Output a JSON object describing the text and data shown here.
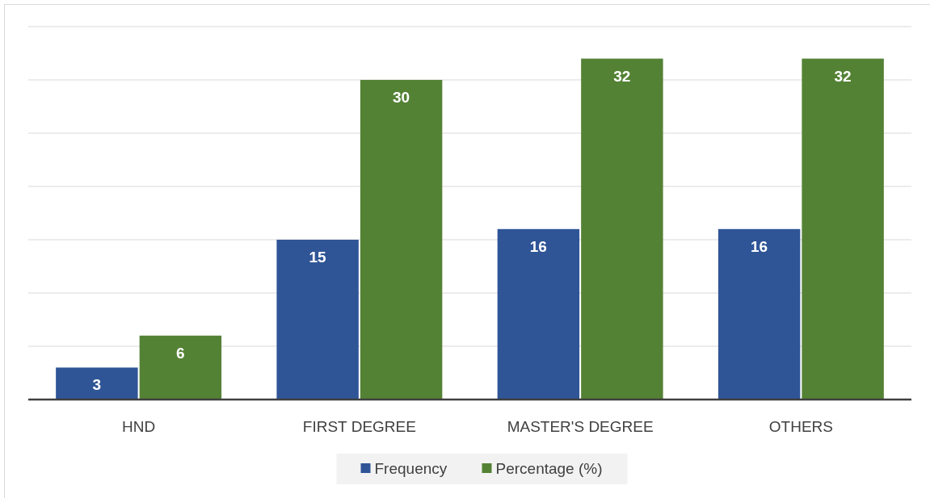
{
  "chart_data": {
    "type": "bar",
    "categories": [
      "HND",
      "FIRST DEGREE",
      "MASTER'S DEGREE",
      "OTHERS"
    ],
    "series": [
      {
        "name": "Frequency",
        "color": "#2f5597",
        "values": [
          3,
          15,
          16,
          16
        ]
      },
      {
        "name": "Percentage (%)",
        "color": "#548235",
        "values": [
          6,
          30,
          32,
          32
        ]
      }
    ],
    "ylim": [
      0,
      35
    ],
    "yticks": [
      {
        "value": 0,
        "label": null
      },
      {
        "value": 5,
        "label": null
      },
      {
        "value": 10,
        "label": null
      },
      {
        "value": 15,
        "label": null
      },
      {
        "value": 20,
        "label": null
      },
      {
        "value": 25,
        "label": null
      },
      {
        "value": 30,
        "label": null
      },
      {
        "value": 35,
        "label": null
      }
    ],
    "grid": "y",
    "tick_labels": "x",
    "data_labels": true,
    "legend": "bottom"
  }
}
